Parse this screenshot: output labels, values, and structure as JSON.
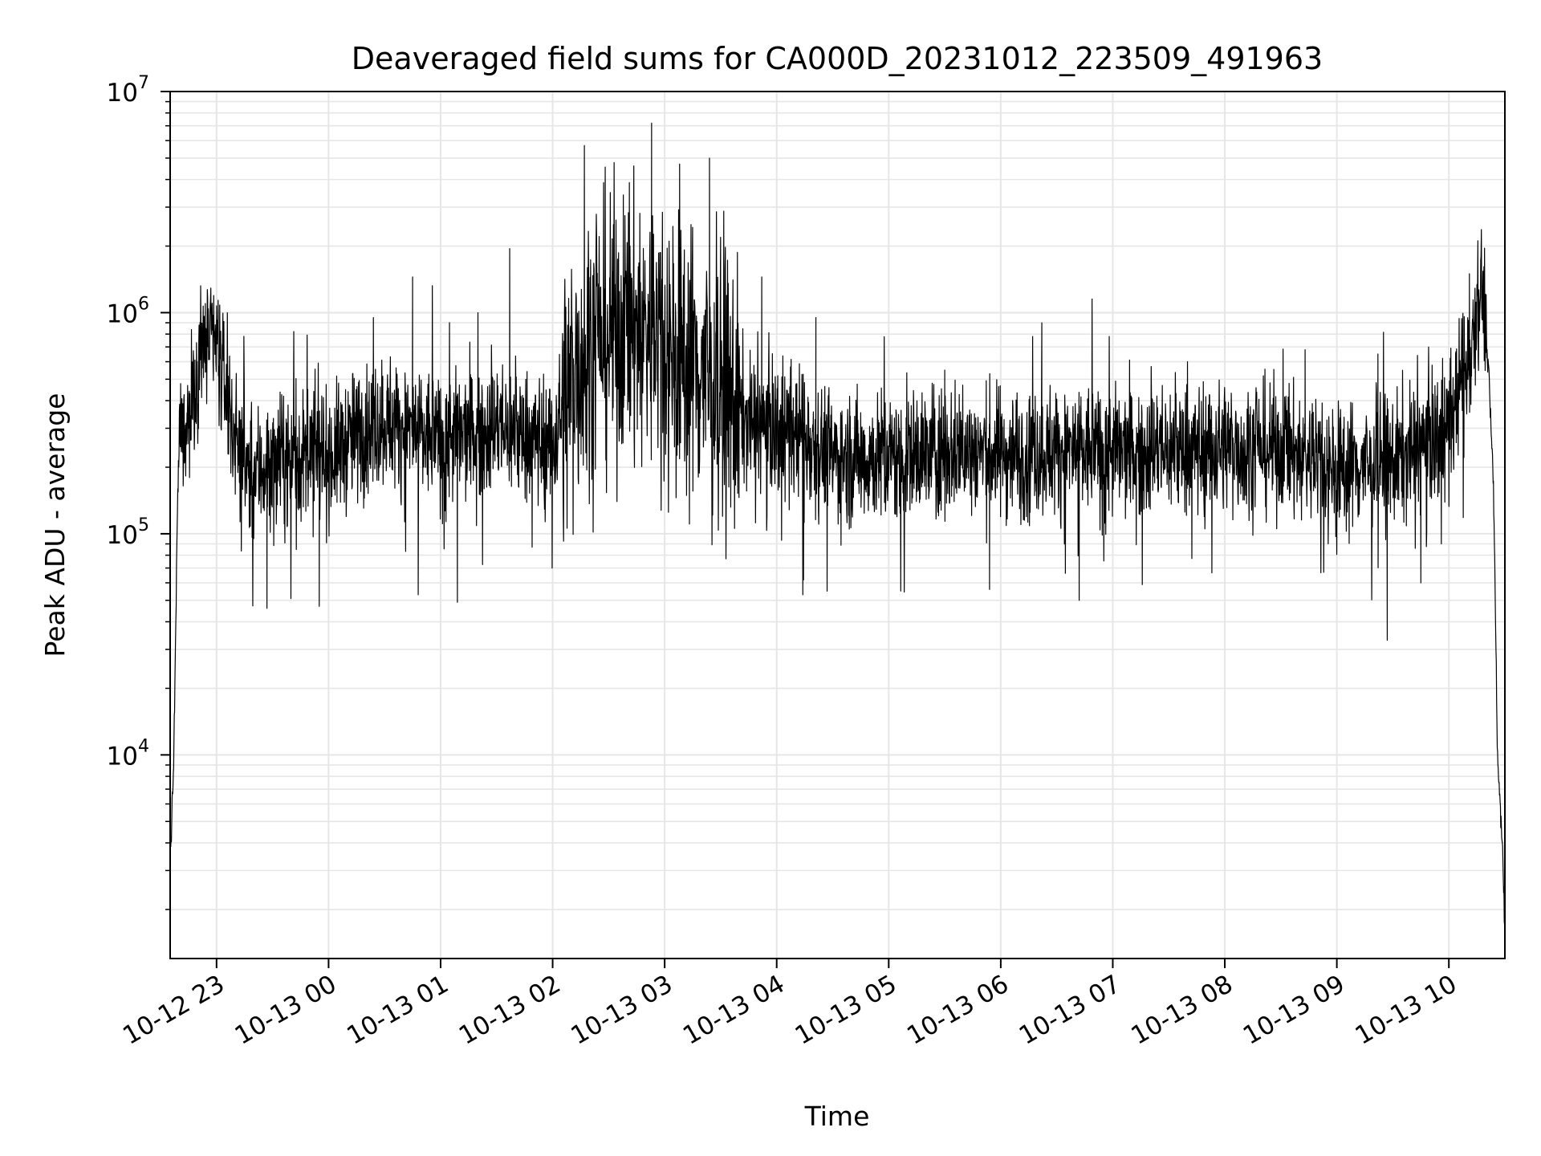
{
  "chart_data": {
    "type": "line",
    "title": "Deaveraged field sums for CA000D_20231012_223509_491963",
    "xlabel": "Time",
    "ylabel": "Peak ADU - average",
    "xlim": [
      "2023-10-12 22:35:09",
      "2023-10-13 10:30:00"
    ],
    "ylim": [
      1200,
      10000000
    ],
    "y_scale": "log",
    "grid": true,
    "legend": "none",
    "x_ticks": [
      {
        "t": "2023-10-12 23:00:00",
        "label": "10-12 23"
      },
      {
        "t": "2023-10-13 00:00:00",
        "label": "10-13 00"
      },
      {
        "t": "2023-10-13 01:00:00",
        "label": "10-13 01"
      },
      {
        "t": "2023-10-13 02:00:00",
        "label": "10-13 02"
      },
      {
        "t": "2023-10-13 03:00:00",
        "label": "10-13 03"
      },
      {
        "t": "2023-10-13 04:00:00",
        "label": "10-13 04"
      },
      {
        "t": "2023-10-13 05:00:00",
        "label": "10-13 05"
      },
      {
        "t": "2023-10-13 06:00:00",
        "label": "10-13 06"
      },
      {
        "t": "2023-10-13 07:00:00",
        "label": "10-13 07"
      },
      {
        "t": "2023-10-13 08:00:00",
        "label": "10-13 08"
      },
      {
        "t": "2023-10-13 09:00:00",
        "label": "10-13 09"
      },
      {
        "t": "2023-10-13 10:00:00",
        "label": "10-13 10"
      }
    ],
    "y_ticks": [
      {
        "value": 10000,
        "base": "10",
        "exp": "4"
      },
      {
        "value": 100000,
        "base": "10",
        "exp": "5"
      },
      {
        "value": 1000000,
        "base": "10",
        "exp": "6"
      },
      {
        "value": 10000000,
        "base": "10",
        "exp": "7"
      }
    ],
    "series": [
      {
        "color": "#000000",
        "x": [
          "2023-10-12 22:35:09",
          "2023-10-12 22:36:00",
          "2023-10-12 22:37:00",
          "2023-10-12 22:38:00",
          "2023-10-12 22:39:00",
          "2023-10-12 22:40:00",
          "2023-10-12 22:42:00",
          "2023-10-12 22:45:00",
          "2023-10-12 22:50:00",
          "2023-10-12 22:55:00",
          "2023-10-12 23:00:00",
          "2023-10-12 23:05:00",
          "2023-10-12 23:10:00",
          "2023-10-12 23:15:00",
          "2023-10-12 23:20:00",
          "2023-10-12 23:30:00",
          "2023-10-12 23:45:00",
          "2023-10-13 00:00:00",
          "2023-10-13 00:15:00",
          "2023-10-13 00:30:00",
          "2023-10-13 00:45:00",
          "2023-10-13 01:00:00",
          "2023-10-13 01:15:00",
          "2023-10-13 01:30:00",
          "2023-10-13 01:45:00",
          "2023-10-13 02:00:00",
          "2023-10-13 02:15:00",
          "2023-10-13 02:30:00",
          "2023-10-13 02:45:00",
          "2023-10-13 03:00:00",
          "2023-10-13 03:15:00",
          "2023-10-13 03:30:00",
          "2023-10-13 03:45:00",
          "2023-10-13 04:00:00",
          "2023-10-13 04:15:00",
          "2023-10-13 04:30:00",
          "2023-10-13 05:00:00",
          "2023-10-13 05:30:00",
          "2023-10-13 06:00:00",
          "2023-10-13 06:30:00",
          "2023-10-13 07:00:00",
          "2023-10-13 07:30:00",
          "2023-10-13 08:00:00",
          "2023-10-13 08:30:00",
          "2023-10-13 09:00:00",
          "2023-10-13 09:30:00",
          "2023-10-13 09:45:00",
          "2023-10-13 10:00:00",
          "2023-10-13 10:08:00",
          "2023-10-13 10:12:00",
          "2023-10-13 10:15:00",
          "2023-10-13 10:18:00",
          "2023-10-13 10:20:00",
          "2023-10-13 10:22:00",
          "2023-10-13 10:24:00",
          "2023-10-13 10:25:00",
          "2023-10-13 10:26:00",
          "2023-10-13 10:27:00",
          "2023-10-13 10:28:00",
          "2023-10-13 10:29:00",
          "2023-10-13 10:30:00"
        ],
        "values": [
          3500,
          5000,
          9000,
          30000,
          120000,
          270000,
          280000,
          330000,
          550000,
          750000,
          700000,
          450000,
          280000,
          200000,
          190000,
          210000,
          220000,
          220000,
          280000,
          330000,
          290000,
          260000,
          280000,
          300000,
          280000,
          260000,
          650000,
          800000,
          850000,
          750000,
          600000,
          450000,
          320000,
          300000,
          280000,
          220000,
          220000,
          240000,
          230000,
          240000,
          230000,
          240000,
          250000,
          240000,
          200000,
          210000,
          250000,
          300000,
          550000,
          700000,
          1200000,
          1300000,
          800000,
          400000,
          150000,
          40000,
          10000,
          7000,
          5000,
          3500,
          1500
        ]
      }
    ],
    "envelope_note_peaks": [
      {
        "t": "2023-10-12 22:54:00",
        "value": 1100000
      },
      {
        "t": "2023-10-13 00:24:00",
        "value": 950000
      },
      {
        "t": "2023-10-13 00:45:00",
        "value": 1450000
      },
      {
        "t": "2023-10-13 01:20:00",
        "value": 1000000
      },
      {
        "t": "2023-10-13 01:37:00",
        "value": 1950000
      },
      {
        "t": "2023-10-13 02:17:00",
        "value": 5700000
      },
      {
        "t": "2023-10-13 02:53:00",
        "value": 7200000
      },
      {
        "t": "2023-10-13 03:08:00",
        "value": 4700000
      },
      {
        "t": "2023-10-13 03:24:00",
        "value": 5000000
      },
      {
        "t": "2023-10-13 03:52:00",
        "value": 1450000
      },
      {
        "t": "2023-10-13 04:21:00",
        "value": 950000
      },
      {
        "t": "2023-10-13 05:30:00",
        "value": 550000
      },
      {
        "t": "2023-10-13 06:22:00",
        "value": 900000
      },
      {
        "t": "2023-10-13 07:40:00",
        "value": 600000
      },
      {
        "t": "2023-10-13 08:43:00",
        "value": 680000
      },
      {
        "t": "2023-10-13 09:22:00",
        "value": 650000
      },
      {
        "t": "2023-10-13 10:11:00",
        "value": 1500000
      }
    ],
    "envelope_note_troughs": [
      {
        "t": "2023-10-12 23:27:00",
        "value": 46000
      },
      {
        "t": "2023-10-12 23:55:00",
        "value": 47000
      },
      {
        "t": "2023-10-13 00:48:00",
        "value": 53000
      },
      {
        "t": "2023-10-13 01:09:00",
        "value": 49000
      },
      {
        "t": "2023-10-13 03:31:00",
        "value": 120000
      },
      {
        "t": "2023-10-13 04:14:00",
        "value": 53000
      },
      {
        "t": "2023-10-13 04:27:00",
        "value": 55000
      },
      {
        "t": "2023-10-13 05:54:00",
        "value": 56000
      },
      {
        "t": "2023-10-13 06:42:00",
        "value": 50000
      },
      {
        "t": "2023-10-13 09:27:00",
        "value": 33000
      },
      {
        "t": "2023-10-13 09:45:00",
        "value": 60000
      }
    ]
  }
}
